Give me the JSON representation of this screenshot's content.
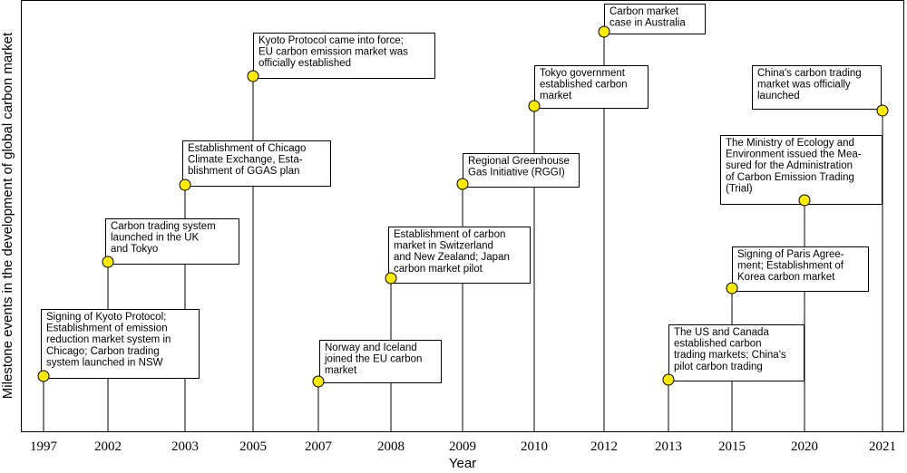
{
  "chart_data": {
    "type": "timeline",
    "title": "",
    "xlabel": "Year",
    "ylabel": "Milestone events in the development of global carbon market",
    "categories": [
      "1997",
      "2002",
      "2003",
      "2005",
      "2007",
      "2008",
      "2009",
      "2010",
      "2012",
      "2013",
      "2015",
      "2020",
      "2021"
    ],
    "events": [
      {
        "year": "1997",
        "lines": [
          "Signing of Kyoto Protocol;",
          "Establishment of emission",
          "reduction market system in",
          "Chicago; Carbon trading",
          "system launched in NSW"
        ]
      },
      {
        "year": "2002",
        "lines": [
          "Carbon trading system",
          "launched in the UK",
          "and Tokyo"
        ]
      },
      {
        "year": "2003",
        "lines": [
          "Establishment of Chicago",
          "Climate Exchange, Esta-",
          "blishment of GGAS plan"
        ]
      },
      {
        "year": "2005",
        "lines": [
          "Kyoto Protocol came into force;",
          "EU carbon emission market was",
          "officially established"
        ]
      },
      {
        "year": "2007",
        "lines": [
          "Norway and Iceland",
          "joined the EU carbon",
          "market"
        ]
      },
      {
        "year": "2008",
        "lines": [
          "Establishment of carbon",
          "market in Switzerland",
          "and New Zealand; Japan",
          "carbon market pilot"
        ]
      },
      {
        "year": "2009",
        "lines": [
          "Regional Greenhouse",
          "Gas Initiative (RGGI)"
        ]
      },
      {
        "year": "2010",
        "lines": [
          "Tokyo government",
          "established carbon",
          "market"
        ]
      },
      {
        "year": "2012",
        "lines": [
          "Carbon market",
          "case in Australia"
        ]
      },
      {
        "year": "2013",
        "lines": [
          "The US and Canada",
          "established carbon",
          "trading markets; China's",
          "pilot carbon trading"
        ]
      },
      {
        "year": "2015",
        "lines": [
          "Signing of Paris Agree-",
          "ment; Establishment of",
          "Korea carbon market"
        ]
      },
      {
        "year": "2020",
        "lines": [
          "The Ministry of Ecology and",
          "Environment issued the Mea-",
          "sured for the Administration",
          "of Carbon Emission Trading",
          "(Trial)"
        ]
      },
      {
        "year": "2021",
        "lines": [
          "China's carbon trading",
          "market was officially",
          "launched"
        ]
      }
    ],
    "colors": {
      "marker": "#ffea00",
      "stroke": "#000000",
      "background": "#ffffff"
    },
    "grid": false,
    "legend": "none"
  }
}
